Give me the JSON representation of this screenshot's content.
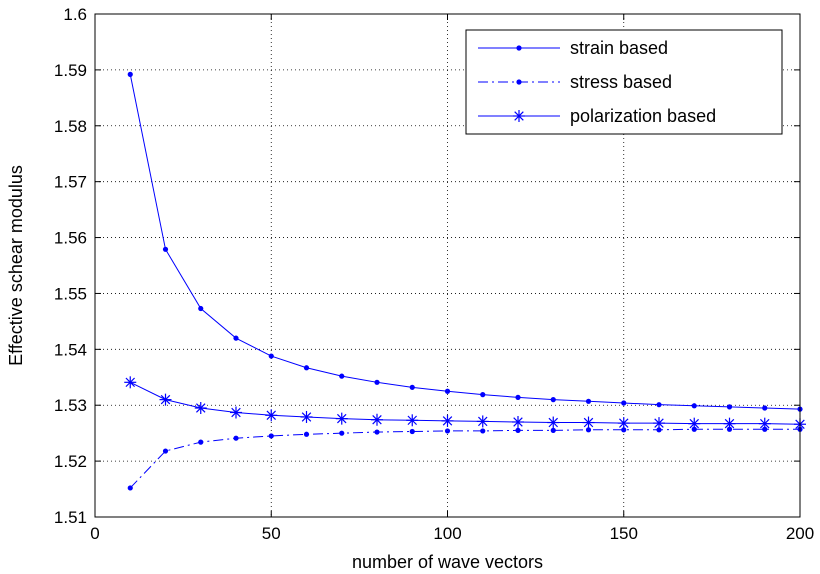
{
  "chart_data": {
    "type": "line",
    "title": "",
    "xlabel": "number of wave vectors",
    "ylabel": "Effective schear modulus",
    "xlim": [
      0,
      200
    ],
    "ylim": [
      1.51,
      1.6
    ],
    "xticks": [
      0,
      50,
      100,
      150,
      200
    ],
    "xtick_labels": [
      "0",
      "50",
      "100",
      "150",
      "200"
    ],
    "yticks": [
      1.51,
      1.52,
      1.53,
      1.54,
      1.55,
      1.56,
      1.57,
      1.58,
      1.59,
      1.6
    ],
    "ytick_labels": [
      "1.51",
      "1.52",
      "1.53",
      "1.54",
      "1.55",
      "1.56",
      "1.57",
      "1.58",
      "1.59",
      "1.6"
    ],
    "grid": true,
    "grid_style": "dotted",
    "legend_position": "top-right",
    "line_color": "#0000ff",
    "x": [
      10,
      20,
      30,
      40,
      50,
      60,
      70,
      80,
      90,
      100,
      110,
      120,
      130,
      140,
      150,
      160,
      170,
      180,
      190,
      200
    ],
    "series": [
      {
        "name": "strain based",
        "line_style": "solid",
        "marker": "dot",
        "values": [
          1.5892,
          1.5579,
          1.5473,
          1.542,
          1.5388,
          1.5367,
          1.5352,
          1.5341,
          1.5332,
          1.5325,
          1.5319,
          1.5314,
          1.531,
          1.5307,
          1.5304,
          1.5301,
          1.5299,
          1.5297,
          1.5295,
          1.5293
        ]
      },
      {
        "name": "stress based",
        "line_style": "dashdot",
        "marker": "dot",
        "values": [
          1.5152,
          1.5218,
          1.5234,
          1.5241,
          1.5245,
          1.5248,
          1.525,
          1.5252,
          1.5253,
          1.5254,
          1.5254,
          1.5255,
          1.5255,
          1.5256,
          1.5256,
          1.5256,
          1.5257,
          1.5257,
          1.5257,
          1.5257
        ]
      },
      {
        "name": "polarization based",
        "line_style": "solid",
        "marker": "star",
        "values": [
          1.5341,
          1.531,
          1.5295,
          1.5287,
          1.5282,
          1.5279,
          1.5276,
          1.5274,
          1.5273,
          1.5272,
          1.5271,
          1.527,
          1.5269,
          1.5269,
          1.5268,
          1.5268,
          1.5267,
          1.5267,
          1.5267,
          1.5266
        ]
      }
    ]
  }
}
